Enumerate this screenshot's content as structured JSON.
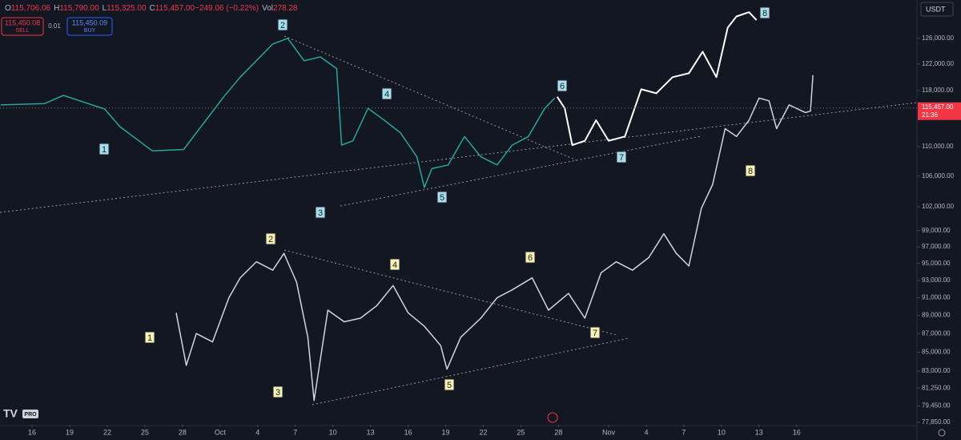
{
  "header": {
    "ohlc": [
      "O",
      "115,706.06",
      "H",
      "115,790.00",
      "L",
      "115,325.00",
      "C",
      "115,457.00",
      "−249.06 (−0.22%)",
      "Vol",
      "278.28"
    ],
    "sell_price": "115,450.08",
    "sell": "SELL",
    "spread": "0.01",
    "buy_price": "115,450.09",
    "buy": "BUY",
    "currency": "USDT",
    "logo": "PRO"
  },
  "chart_data": {
    "type": "line",
    "log_scale": true,
    "xlim": [
      -2.56,
      70.6
    ],
    "xticks": [
      {
        "value": 0,
        "label": "16"
      },
      {
        "value": 3,
        "label": "19"
      },
      {
        "value": 6,
        "label": "22"
      },
      {
        "value": 9,
        "label": "25"
      },
      {
        "value": 12,
        "label": "28"
      },
      {
        "value": 15,
        "label": "Oct"
      },
      {
        "value": 18,
        "label": "4"
      },
      {
        "value": 21,
        "label": "7"
      },
      {
        "value": 24,
        "label": "10"
      },
      {
        "value": 27,
        "label": "13"
      },
      {
        "value": 30,
        "label": "16"
      },
      {
        "value": 33,
        "label": "19"
      },
      {
        "value": 36,
        "label": "22"
      },
      {
        "value": 39,
        "label": "25"
      },
      {
        "value": 42,
        "label": "28"
      },
      {
        "value": 46,
        "label": "Nov"
      },
      {
        "value": 49,
        "label": "4"
      },
      {
        "value": 52,
        "label": "7"
      },
      {
        "value": 55,
        "label": "10"
      },
      {
        "value": 58,
        "label": "13"
      },
      {
        "value": 61,
        "label": "16"
      }
    ],
    "ylim": [
      77600,
      132200
    ],
    "yticks": [
      {
        "value": 126000,
        "label": "126,000.00"
      },
      {
        "value": 122000,
        "label": "122,000.00"
      },
      {
        "value": 118000,
        "label": "118,000.00"
      },
      {
        "value": 110000,
        "label": "110,000.00"
      },
      {
        "value": 106000,
        "label": "106,000.00"
      },
      {
        "value": 102000,
        "label": "102,000.00"
      },
      {
        "value": 99000,
        "label": "99,000.00"
      },
      {
        "value": 97000,
        "label": "97,000.00"
      },
      {
        "value": 95000,
        "label": "95,000.00"
      },
      {
        "value": 93000,
        "label": "93,000.00"
      },
      {
        "value": 91000,
        "label": "91,000.00"
      },
      {
        "value": 89000,
        "label": "89,000.00"
      },
      {
        "value": 87000,
        "label": "87,000.00"
      },
      {
        "value": 85000,
        "label": "85,000.00"
      },
      {
        "value": 83000,
        "label": "83,000.00"
      },
      {
        "value": 81250,
        "label": "81,250.00"
      },
      {
        "value": 79450,
        "label": "79,450.00"
      },
      {
        "value": 77850,
        "label": "77,850.00"
      }
    ],
    "last_price": {
      "value": 115457,
      "label": "115,457.00"
    },
    "last_time": "21:36",
    "series": [
      {
        "color": "#26a69a",
        "line_width": 1.5,
        "x": [
          -2.5,
          1,
          2.5,
          5.8,
          7,
          9.6,
          12.1,
          13.4,
          15.3,
          16.6,
          19.2,
          20.4,
          21.7,
          23,
          24.3,
          24.7,
          25.6,
          26.8,
          28.1,
          29.4,
          30.7,
          31.3,
          31.9,
          33.2,
          34.5,
          35.8,
          37.1,
          38.3,
          39.6,
          40.9,
          41.7
        ],
        "values": [
          115900,
          116100,
          117300,
          115300,
          112800,
          109400,
          109600,
          112600,
          117100,
          120000,
          125100,
          126000,
          122500,
          123100,
          121300,
          110200,
          110800,
          115400,
          113700,
          111900,
          108600,
          104500,
          107000,
          107500,
          111400,
          108600,
          107500,
          110200,
          111400,
          115400,
          116900
        ]
      },
      {
        "color": "#d1d4dc",
        "line_width": 1.5,
        "x": [
          11.5,
          12.3,
          13.1,
          14.4,
          15.7,
          16.6,
          17.9,
          19.2,
          20.1,
          21.1,
          22.0,
          22.5,
          23.6,
          24.9,
          26.2,
          27.5,
          28.8,
          30.0,
          31.3,
          32.6,
          33.1,
          34.2,
          35.8,
          37.1,
          38.3,
          39.9,
          41.2,
          42.8,
          44.1,
          45.4,
          46.6,
          47.9,
          49.2,
          50.4,
          51.4,
          52.4,
          53.4,
          54.3,
          55.3,
          56.2,
          57.2,
          58.0,
          58.8,
          59.4,
          60.4,
          61.7,
          62.1,
          62.3
        ],
        "values": [
          89300,
          83600,
          87000,
          86100,
          91000,
          93300,
          95200,
          94200,
          96200,
          92800,
          86600,
          80000,
          89600,
          88300,
          88700,
          90100,
          92400,
          89300,
          87800,
          85700,
          83200,
          86600,
          88700,
          91000,
          91900,
          93300,
          89600,
          91500,
          88700,
          93900,
          95200,
          94200,
          95700,
          98600,
          96200,
          94700,
          101800,
          104900,
          112500,
          111400,
          113700,
          116900,
          116500,
          112500,
          115900,
          114800,
          115000,
          120300
        ]
      },
      {
        "color": "#ffffff",
        "line_width": 2,
        "x": [
          41.9,
          42.5,
          43.1,
          44.1,
          45.0,
          46.0,
          47.3,
          48.6,
          49.8,
          51.1,
          52.4,
          53.5,
          54.6,
          55.5,
          56.2,
          57.2,
          57.8
        ],
        "values": [
          117100,
          115400,
          110200,
          110800,
          113700,
          110800,
          111400,
          118200,
          117600,
          120000,
          120600,
          123900,
          120000,
          127700,
          129500,
          130200,
          128900
        ]
      }
    ],
    "wave_labels": {
      "upper": [
        "1",
        "2",
        "3",
        "4",
        "5",
        "6",
        "7",
        "8"
      ],
      "lower": [
        "1",
        "2",
        "3",
        "4",
        "5",
        "6",
        "7",
        "8"
      ]
    }
  }
}
